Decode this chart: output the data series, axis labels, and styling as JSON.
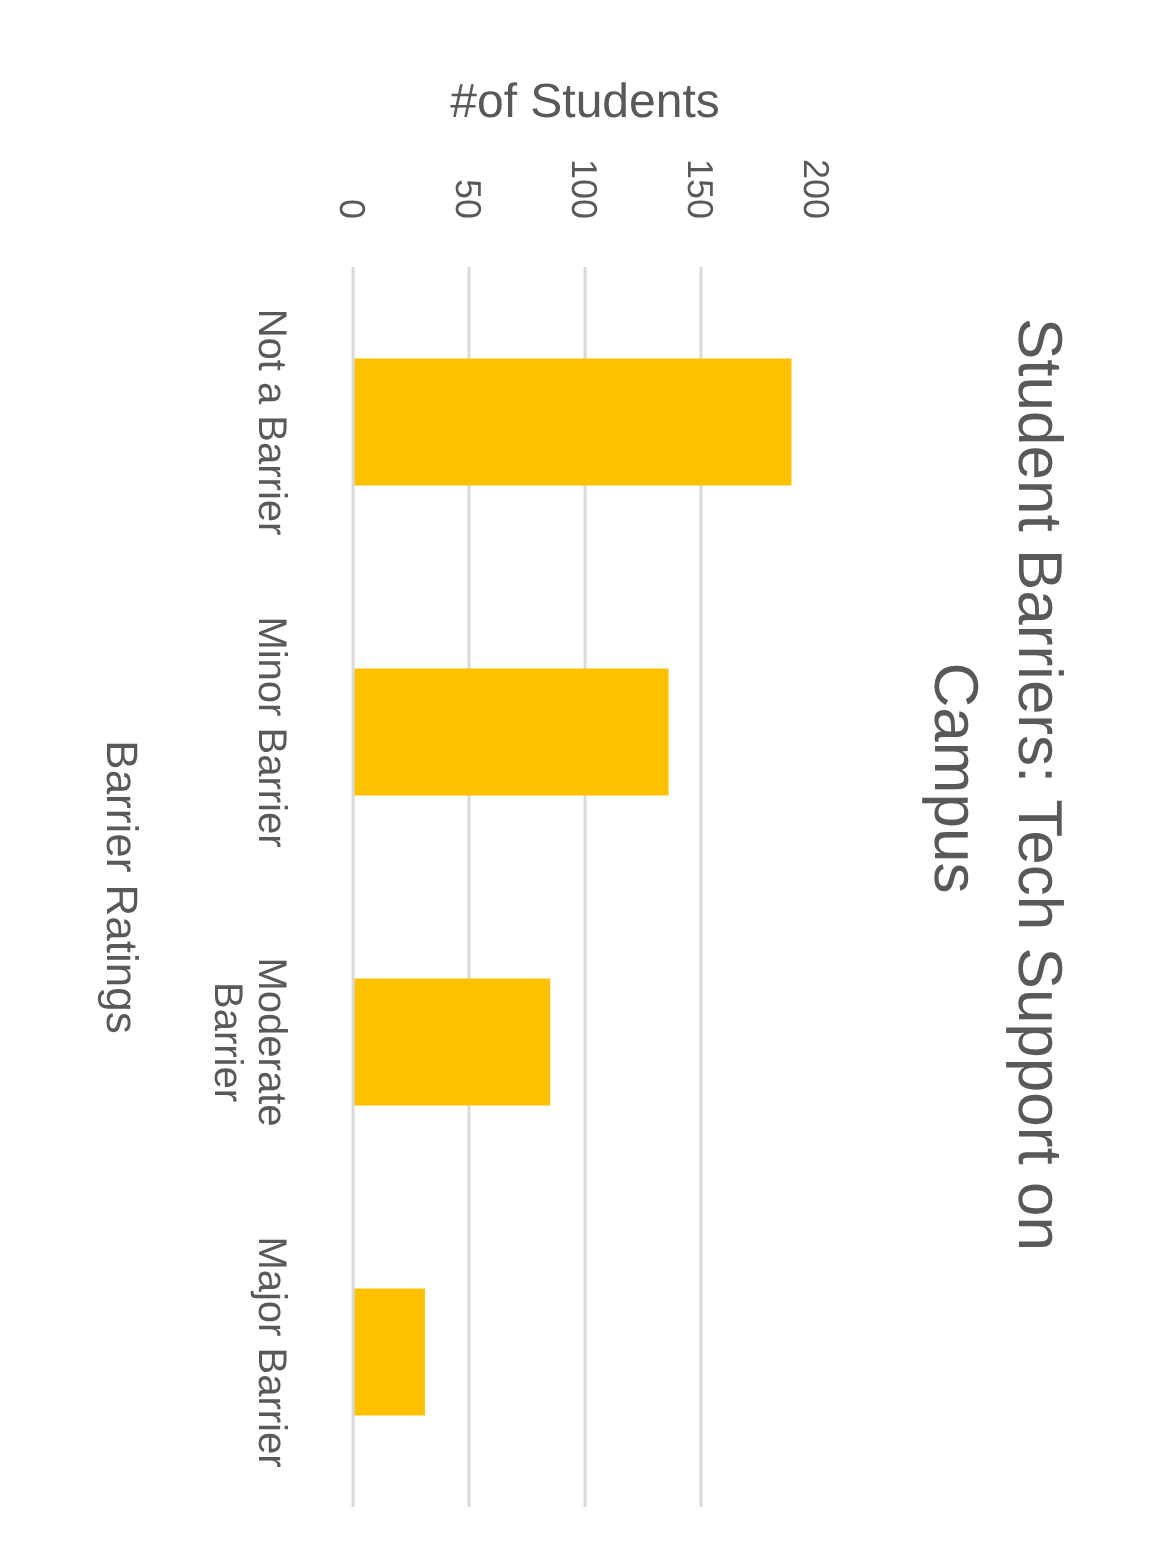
{
  "chart_data": {
    "type": "bar",
    "orientation": "horizontal",
    "title": "Student Barriers: Tech Support on Campus",
    "xlabel": "#of Students",
    "ylabel": "Barrier Ratings",
    "categories": [
      "Not a Barrier",
      "Minor Barrier",
      "Moderate Barrier",
      "Major Barrier"
    ],
    "values": [
      189,
      136,
      85,
      31
    ],
    "color": "#ffc000",
    "xlim": [
      0,
      200
    ],
    "xticks": [
      0,
      50,
      100,
      150,
      200
    ],
    "grid": "x"
  }
}
